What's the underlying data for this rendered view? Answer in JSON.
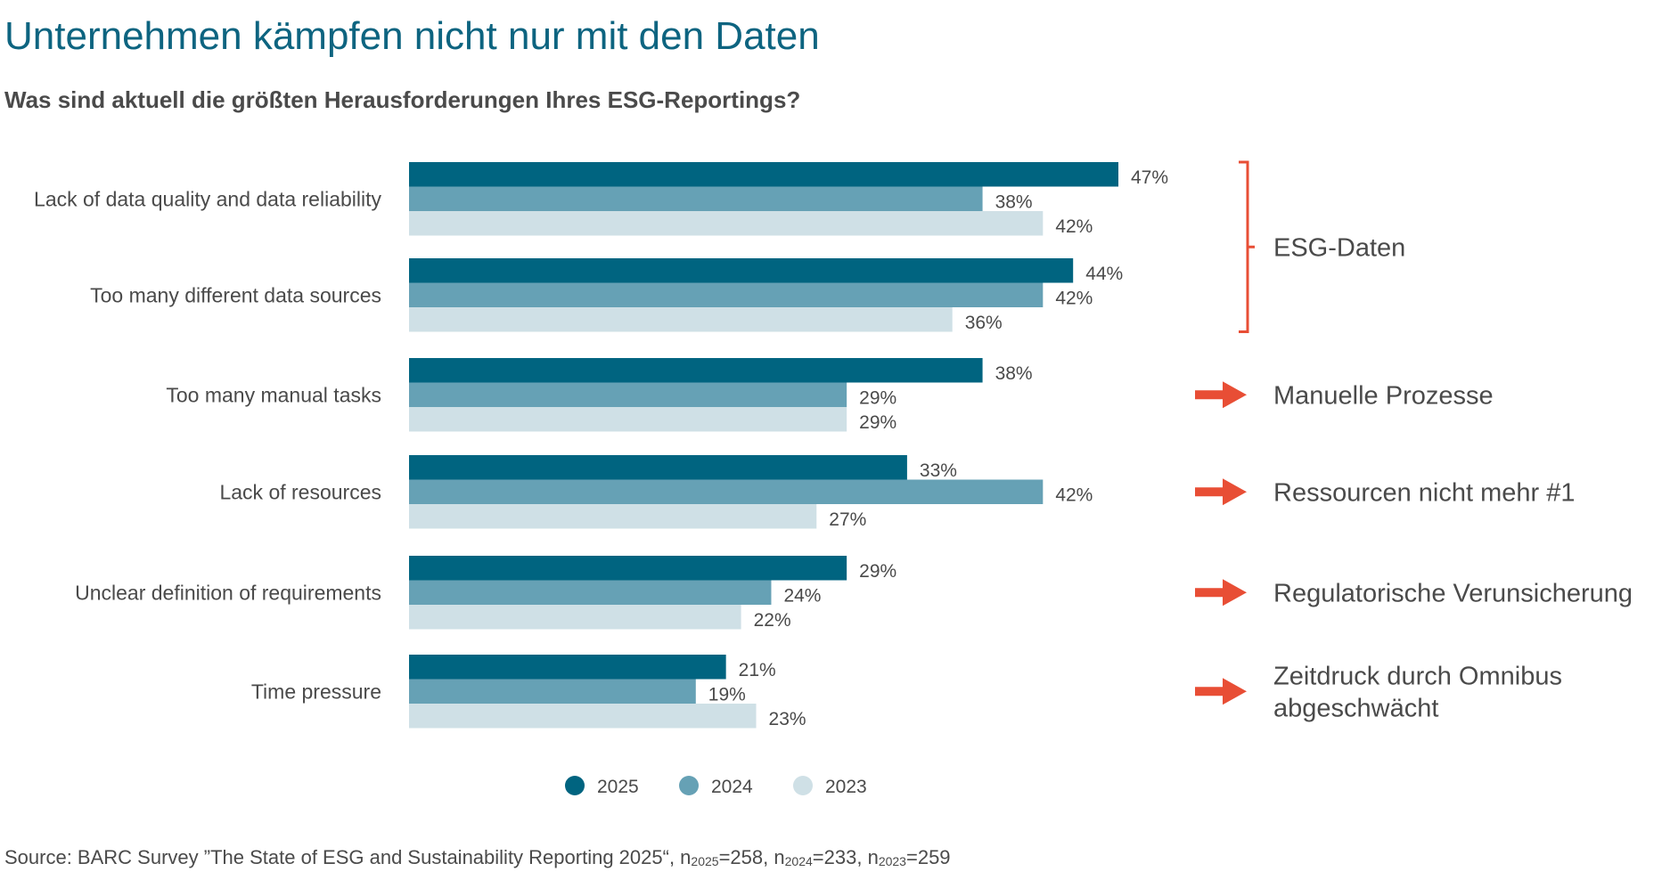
{
  "title": "Unternehmen kämpfen nicht nur mit den Daten",
  "subtitle": "Was sind aktuell die größten Herausforderungen Ihres ESG-Reportings?",
  "source": {
    "prefix": "Source: BARC Survey ”The State of ESG and Sustainability Reporting 2025“, ",
    "n": [
      {
        "label": "n",
        "sub": "2025",
        "value": "=258"
      },
      {
        "label": "n",
        "sub": "2024",
        "value": "=233"
      },
      {
        "label": "n",
        "sub": "2023",
        "value": "=259"
      }
    ]
  },
  "chart_data": {
    "type": "bar",
    "orientation": "horizontal",
    "unit": "%",
    "categories": [
      "Lack of data quality and data reliability",
      "Too many different data sources",
      "Too many manual tasks",
      "Lack of resources",
      "Unclear definition of requirements",
      "Time pressure"
    ],
    "series": [
      {
        "name": "2025",
        "color": "#006480",
        "values": [
          47,
          44,
          38,
          33,
          29,
          21
        ]
      },
      {
        "name": "2024",
        "color": "#66a1b5",
        "values": [
          38,
          42,
          29,
          42,
          24,
          19
        ]
      },
      {
        "name": "2023",
        "color": "#cfe0e6",
        "values": [
          42,
          36,
          29,
          27,
          22,
          23
        ]
      }
    ],
    "xlim": [
      0,
      50
    ],
    "grid": false,
    "legend": "bottom-center",
    "annotations": [
      {
        "type": "bracket",
        "categories": [
          0,
          1
        ],
        "lines": [
          "ESG-Daten"
        ]
      },
      {
        "type": "arrow",
        "categories": [
          2
        ],
        "lines": [
          "Manuelle Prozesse"
        ]
      },
      {
        "type": "arrow",
        "categories": [
          3
        ],
        "lines": [
          "Ressourcen nicht mehr #1"
        ]
      },
      {
        "type": "arrow",
        "categories": [
          4
        ],
        "lines": [
          "Regulatorische Verunsicherung"
        ]
      },
      {
        "type": "arrow",
        "categories": [
          5
        ],
        "lines": [
          "Zeitdruck durch Omnibus",
          "abgeschwächt"
        ]
      }
    ],
    "annotation_color": "#e84e35"
  }
}
